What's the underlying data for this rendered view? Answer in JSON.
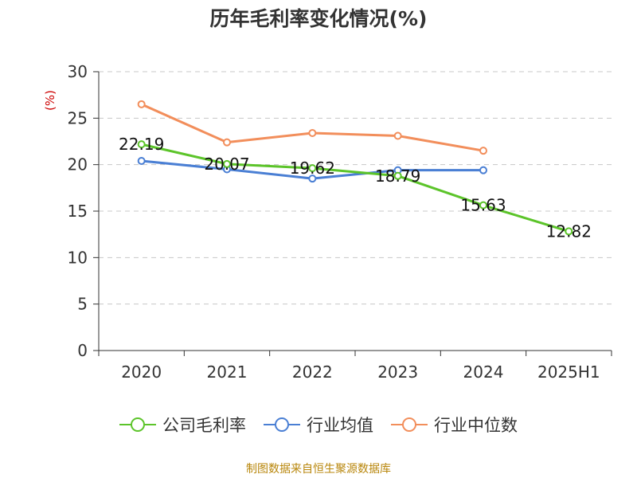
{
  "chart_data": {
    "type": "line",
    "title": "历年毛利率变化情况(%)",
    "ylabel": "(%)",
    "categories": [
      "2020",
      "2021",
      "2022",
      "2023",
      "2024",
      "2025H1"
    ],
    "ylim": [
      0,
      30
    ],
    "yticks": [
      "0",
      "5",
      "10",
      "15",
      "20",
      "25",
      "30"
    ],
    "grid": true,
    "legend_position": "bottom",
    "series": [
      {
        "name": "公司毛利率",
        "color": "#5cc42a",
        "values": [
          22.19,
          20.07,
          19.62,
          18.79,
          15.63,
          12.82
        ],
        "labels": [
          "22.19",
          "20.07",
          "19.62",
          "18.79",
          "15.63",
          "12.82"
        ]
      },
      {
        "name": "行业均值",
        "color": "#4a7fd4",
        "values": [
          20.4,
          19.5,
          18.5,
          19.4,
          19.4,
          null
        ]
      },
      {
        "name": "行业中位数",
        "color": "#f28e5b",
        "values": [
          26.5,
          22.4,
          23.4,
          23.1,
          21.5,
          null
        ]
      }
    ]
  },
  "footer": {
    "source": "制图数据来自恒生聚源数据库"
  }
}
